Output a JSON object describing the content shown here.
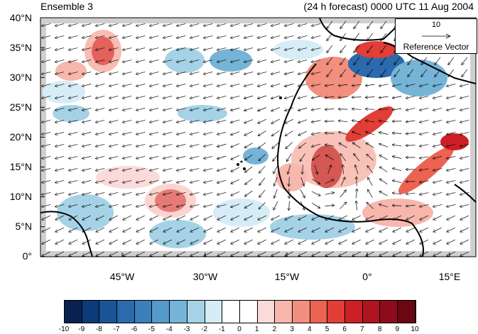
{
  "header": {
    "left_title": "Ensemble 3",
    "right_title": "(24 h forecast) 0000 UTC 11 Aug 2004"
  },
  "map": {
    "lat_labels": [
      "40°N",
      "35°N",
      "30°N",
      "25°N",
      "20°N",
      "15°N",
      "10°N",
      "5°N",
      "0°"
    ],
    "lon_labels": [
      "45°W",
      "30°W",
      "15°W",
      "0°",
      "15°E"
    ],
    "colors": {
      "land_outline": "#000000",
      "vector": "#000000",
      "border_fill": "#cfcfcf"
    }
  },
  "reference_vector": {
    "value": "10",
    "label": "Reference Vector"
  },
  "colorbar": {
    "ticks": [
      "-10",
      "-9",
      "-8",
      "-7",
      "-6",
      "-5",
      "-4",
      "-3",
      "-2",
      "-1",
      "0",
      "1",
      "2",
      "3",
      "4",
      "5",
      "6",
      "7",
      "8",
      "9",
      "10"
    ],
    "colors": [
      "#08214e",
      "#0d3a78",
      "#1a5596",
      "#2a6aad",
      "#3b7fbd",
      "#549bcb",
      "#76b4d7",
      "#a5d2e6",
      "#d6ecf6",
      "#ffffff",
      "#ffffff",
      "#fbdada",
      "#f7b7ad",
      "#f28f7e",
      "#ec6352",
      "#e03e36",
      "#cc1f26",
      "#b01421",
      "#8d0b1b",
      "#6b0612"
    ]
  }
}
